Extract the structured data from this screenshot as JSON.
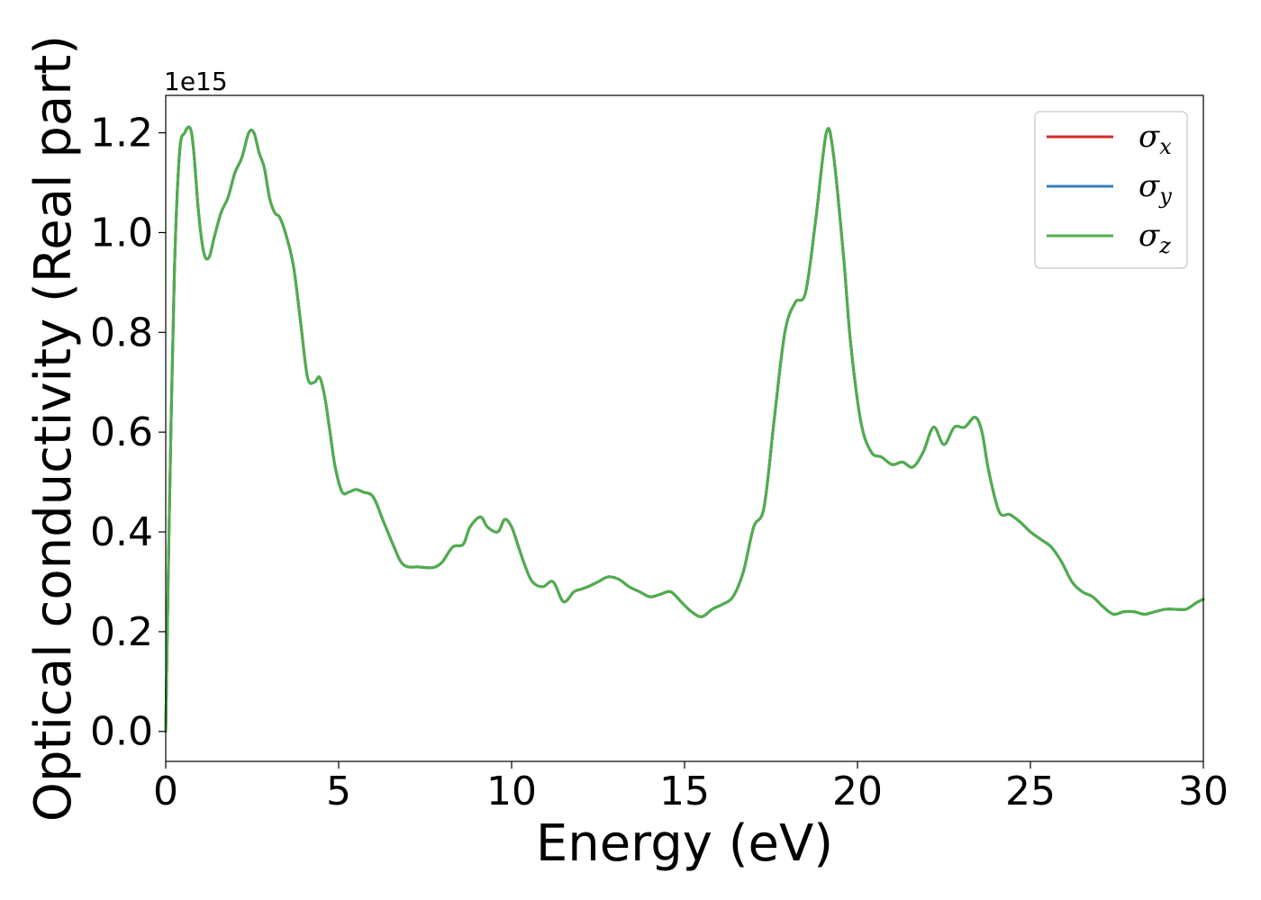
{
  "chart_data": {
    "type": "line",
    "xlabel": "Energy (eV)",
    "ylabel": "Optical conductivity (Real part)",
    "y_offset_text": "1e15",
    "xlim": [
      0,
      30
    ],
    "ylim": [
      -0.06,
      1.275
    ],
    "x_ticks": [
      0,
      5,
      10,
      15,
      20,
      25,
      30
    ],
    "x_tick_labels": [
      "0",
      "5",
      "10",
      "15",
      "20",
      "25",
      "30"
    ],
    "y_ticks": [
      0.0,
      0.2,
      0.4,
      0.6,
      0.8,
      1.0,
      1.2
    ],
    "y_tick_labels": [
      "0.0",
      "0.2",
      "0.4",
      "0.6",
      "0.8",
      "1.0",
      "1.2"
    ],
    "grid": false,
    "legend_position": "top-right",
    "y_scale_factor": 1000000000000000.0,
    "x": [
      0,
      0.1,
      0.25,
      0.4,
      0.55,
      0.7,
      0.8,
      0.95,
      1.1,
      1.25,
      1.4,
      1.6,
      1.8,
      2.0,
      2.2,
      2.4,
      2.55,
      2.7,
      2.85,
      3.0,
      3.15,
      3.3,
      3.5,
      3.7,
      3.9,
      4.1,
      4.3,
      4.45,
      4.6,
      4.75,
      4.9,
      5.1,
      5.3,
      5.5,
      5.7,
      6.0,
      6.3,
      6.6,
      6.8,
      7.0,
      7.3,
      7.6,
      7.8,
      8.0,
      8.3,
      8.6,
      8.8,
      9.1,
      9.3,
      9.6,
      9.8,
      10.0,
      10.2,
      10.4,
      10.6,
      10.9,
      11.2,
      11.5,
      11.8,
      12.0,
      12.2,
      12.5,
      12.8,
      13.1,
      13.4,
      13.7,
      14.0,
      14.3,
      14.6,
      14.9,
      15.2,
      15.5,
      15.8,
      16.1,
      16.4,
      16.7,
      17.0,
      17.3,
      17.6,
      17.9,
      18.2,
      18.5,
      18.8,
      19.1,
      19.3,
      19.6,
      19.8,
      20.1,
      20.4,
      20.7,
      21.0,
      21.3,
      21.6,
      21.9,
      22.2,
      22.5,
      22.8,
      23.1,
      23.4,
      23.6,
      23.8,
      24.1,
      24.4,
      24.7,
      25.0,
      25.3,
      25.6,
      25.9,
      26.2,
      26.5,
      26.8,
      27.1,
      27.4,
      27.7,
      28.0,
      28.3,
      28.6,
      28.9,
      29.2,
      29.5,
      29.8,
      30.0
    ],
    "series": [
      {
        "name": "σx",
        "color": "#d62728",
        "values": [
          0.0,
          0.42,
          0.92,
          1.16,
          1.2,
          1.21,
          1.17,
          1.04,
          0.96,
          0.95,
          0.99,
          1.04,
          1.07,
          1.12,
          1.15,
          1.2,
          1.2,
          1.16,
          1.13,
          1.07,
          1.04,
          1.03,
          0.99,
          0.93,
          0.82,
          0.71,
          0.7,
          0.71,
          0.67,
          0.6,
          0.53,
          0.48,
          0.48,
          0.485,
          0.48,
          0.47,
          0.42,
          0.37,
          0.34,
          0.33,
          0.33,
          0.328,
          0.33,
          0.34,
          0.37,
          0.375,
          0.41,
          0.43,
          0.41,
          0.4,
          0.425,
          0.41,
          0.37,
          0.33,
          0.3,
          0.29,
          0.3,
          0.26,
          0.28,
          0.285,
          0.29,
          0.3,
          0.31,
          0.305,
          0.29,
          0.28,
          0.27,
          0.275,
          0.28,
          0.26,
          0.24,
          0.23,
          0.245,
          0.255,
          0.27,
          0.32,
          0.41,
          0.45,
          0.63,
          0.8,
          0.86,
          0.88,
          1.03,
          1.2,
          1.16,
          0.95,
          0.78,
          0.62,
          0.56,
          0.55,
          0.535,
          0.54,
          0.53,
          0.56,
          0.61,
          0.575,
          0.61,
          0.61,
          0.63,
          0.6,
          0.52,
          0.44,
          0.435,
          0.42,
          0.4,
          0.385,
          0.37,
          0.34,
          0.3,
          0.28,
          0.27,
          0.25,
          0.235,
          0.24,
          0.24,
          0.235,
          0.24,
          0.245,
          0.245,
          0.245,
          0.258,
          0.265
        ]
      },
      {
        "name": "σy",
        "color": "#377eb8",
        "values": [
          0.0,
          0.42,
          0.92,
          1.16,
          1.2,
          1.21,
          1.17,
          1.04,
          0.96,
          0.95,
          0.99,
          1.04,
          1.07,
          1.12,
          1.15,
          1.2,
          1.2,
          1.16,
          1.13,
          1.07,
          1.04,
          1.03,
          0.99,
          0.93,
          0.82,
          0.71,
          0.7,
          0.71,
          0.67,
          0.6,
          0.53,
          0.48,
          0.48,
          0.485,
          0.48,
          0.47,
          0.42,
          0.37,
          0.34,
          0.33,
          0.33,
          0.328,
          0.33,
          0.34,
          0.37,
          0.375,
          0.41,
          0.43,
          0.41,
          0.4,
          0.425,
          0.41,
          0.37,
          0.33,
          0.3,
          0.29,
          0.3,
          0.26,
          0.28,
          0.285,
          0.29,
          0.3,
          0.31,
          0.305,
          0.29,
          0.28,
          0.27,
          0.275,
          0.28,
          0.26,
          0.24,
          0.23,
          0.245,
          0.255,
          0.27,
          0.32,
          0.41,
          0.45,
          0.63,
          0.8,
          0.86,
          0.88,
          1.03,
          1.2,
          1.16,
          0.95,
          0.78,
          0.62,
          0.56,
          0.55,
          0.535,
          0.54,
          0.53,
          0.56,
          0.61,
          0.575,
          0.61,
          0.61,
          0.63,
          0.6,
          0.52,
          0.44,
          0.435,
          0.42,
          0.4,
          0.385,
          0.37,
          0.34,
          0.3,
          0.28,
          0.27,
          0.25,
          0.235,
          0.24,
          0.24,
          0.235,
          0.24,
          0.245,
          0.245,
          0.245,
          0.258,
          0.265
        ]
      },
      {
        "name": "σz",
        "color": "#4daf4a",
        "values": [
          0.0,
          0.42,
          0.92,
          1.16,
          1.2,
          1.21,
          1.17,
          1.04,
          0.96,
          0.95,
          0.99,
          1.04,
          1.07,
          1.12,
          1.15,
          1.2,
          1.2,
          1.16,
          1.13,
          1.07,
          1.04,
          1.03,
          0.99,
          0.93,
          0.82,
          0.71,
          0.7,
          0.71,
          0.67,
          0.6,
          0.53,
          0.48,
          0.48,
          0.485,
          0.48,
          0.47,
          0.42,
          0.37,
          0.34,
          0.33,
          0.33,
          0.328,
          0.33,
          0.34,
          0.37,
          0.375,
          0.41,
          0.43,
          0.41,
          0.4,
          0.425,
          0.41,
          0.37,
          0.33,
          0.3,
          0.29,
          0.3,
          0.26,
          0.28,
          0.285,
          0.29,
          0.3,
          0.31,
          0.305,
          0.29,
          0.28,
          0.27,
          0.275,
          0.28,
          0.26,
          0.24,
          0.23,
          0.245,
          0.255,
          0.27,
          0.32,
          0.41,
          0.45,
          0.63,
          0.8,
          0.86,
          0.88,
          1.03,
          1.2,
          1.16,
          0.95,
          0.78,
          0.62,
          0.56,
          0.55,
          0.535,
          0.54,
          0.53,
          0.56,
          0.61,
          0.575,
          0.61,
          0.61,
          0.63,
          0.6,
          0.52,
          0.44,
          0.435,
          0.42,
          0.4,
          0.385,
          0.37,
          0.34,
          0.3,
          0.28,
          0.27,
          0.25,
          0.235,
          0.24,
          0.24,
          0.235,
          0.24,
          0.245,
          0.245,
          0.245,
          0.258,
          0.265
        ]
      }
    ],
    "legend": [
      {
        "symbol": "σ",
        "subscript": "x",
        "color": "#d62728"
      },
      {
        "symbol": "σ",
        "subscript": "y",
        "color": "#377eb8"
      },
      {
        "symbol": "σ",
        "subscript": "z",
        "color": "#4daf4a"
      }
    ]
  }
}
